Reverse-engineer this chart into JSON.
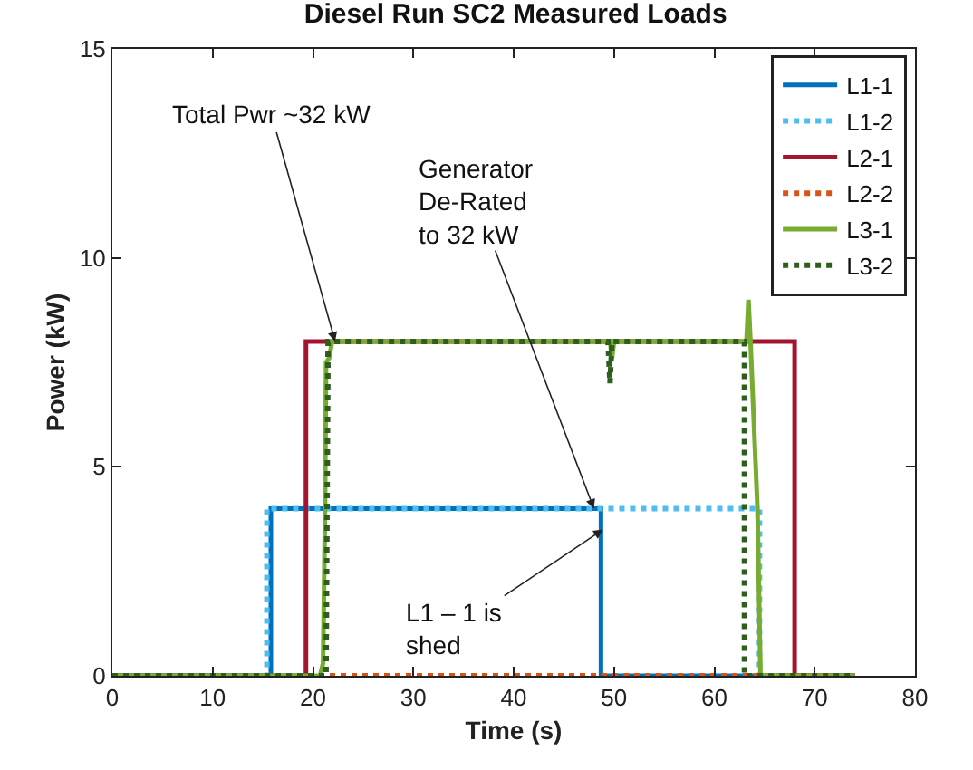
{
  "chart_data": {
    "type": "line",
    "title": "Diesel Run SC2 Measured Loads",
    "xlabel": "Time (s)",
    "ylabel": "Power (kW)",
    "xlim": [
      0,
      80
    ],
    "xticks": [
      0,
      10,
      20,
      30,
      40,
      50,
      60,
      70,
      80
    ],
    "ylim": [
      0,
      15
    ],
    "yticks": [
      0,
      5,
      10,
      15
    ],
    "legend": "top right",
    "marker": "none",
    "series": [
      {
        "name": "L1-1",
        "color": "#0072bd",
        "line_style": "solid",
        "x": [
          0,
          15.8,
          15.8,
          48.7,
          48.7,
          74
        ],
        "values": [
          0,
          0,
          4,
          4,
          0,
          0
        ]
      },
      {
        "name": "L1-2",
        "color": "#4dbeee",
        "line_style": "dotted",
        "x": [
          0,
          15.4,
          15.4,
          64.5,
          64.5,
          74
        ],
        "values": [
          0,
          0,
          4,
          4,
          0,
          0
        ]
      },
      {
        "name": "L2-1",
        "color": "#a2142f",
        "line_style": "solid",
        "x": [
          0,
          19.3,
          19.3,
          68,
          68,
          74
        ],
        "values": [
          0,
          0,
          8,
          8,
          0,
          0
        ]
      },
      {
        "name": "L2-2",
        "color": "#d95319",
        "line_style": "dotted",
        "x": [
          0,
          74
        ],
        "values": [
          0,
          0
        ]
      },
      {
        "name": "L3-1",
        "color": "#77ac30",
        "line_style": "solid",
        "x": [
          0,
          20.7,
          21.0,
          21.2,
          21.3,
          21.6,
          21.9,
          49.6,
          49.8,
          50.0,
          63.2,
          63.4,
          63.6,
          64.3,
          64.6,
          74
        ],
        "values": [
          0,
          0,
          0.3,
          4,
          7.5,
          7.6,
          8,
          8,
          7.6,
          8,
          8,
          9,
          8,
          4,
          0,
          0
        ]
      },
      {
        "name": "L3-2",
        "color": "#2e5e1e",
        "line_style": "dotted",
        "x": [
          0,
          21.3,
          21.5,
          49.4,
          49.6,
          49.8,
          63.0,
          63.0,
          74
        ],
        "values": [
          0,
          0,
          8,
          8,
          7.0,
          8,
          8,
          0,
          0
        ]
      }
    ],
    "annotations": [
      {
        "text": "Total Pwr ~32 kW",
        "x": 22.2,
        "y": 8
      },
      {
        "text": "Generator\nDe-Rated\nto 32 kW",
        "x": 48,
        "y": 4
      },
      {
        "text": "L1 – 1 is\nshed",
        "x": 48.9,
        "y": 3.5
      }
    ]
  }
}
